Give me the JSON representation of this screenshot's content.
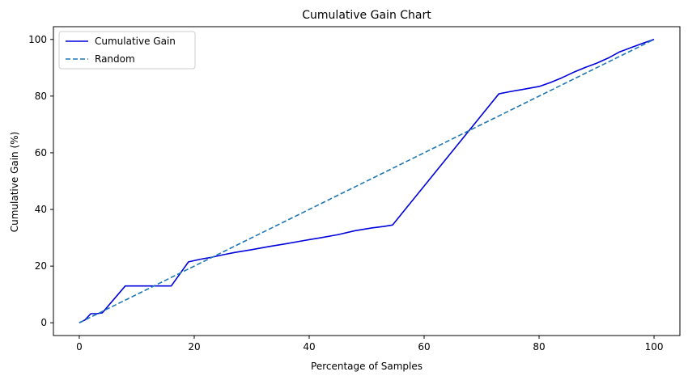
{
  "chart_data": {
    "type": "line",
    "title": "Cumulative Gain Chart",
    "xlabel": "Percentage of Samples",
    "ylabel": "Cumulative Gain (%)",
    "xlim": [
      -4.5,
      104.5
    ],
    "ylim": [
      -4.5,
      104.5
    ],
    "xticks": [
      0,
      20,
      40,
      60,
      80,
      100
    ],
    "yticks": [
      0,
      20,
      40,
      60,
      80,
      100
    ],
    "grid": false,
    "legend_position": "top-left",
    "series": [
      {
        "name": "Cumulative Gain",
        "color": "#0000dd",
        "style": "solid",
        "x": [
          0,
          1,
          2,
          3,
          4,
          8,
          10,
          12,
          14,
          16,
          19,
          21,
          23,
          25,
          27,
          30,
          33,
          36,
          39,
          42,
          45,
          48,
          51,
          53,
          54.5,
          73,
          75,
          77,
          80,
          82,
          84,
          86,
          88,
          90,
          92,
          94,
          96,
          98,
          100
        ],
        "values": [
          0,
          1,
          3.2,
          3.2,
          3.5,
          13,
          13,
          13,
          13,
          13,
          21.5,
          22.4,
          23.1,
          24,
          24.8,
          25.8,
          26.9,
          27.9,
          29,
          30,
          31.1,
          32.5,
          33.5,
          34,
          34.5,
          80.8,
          81.6,
          82.3,
          83.4,
          84.8,
          86.5,
          88.4,
          90.1,
          91.6,
          93.4,
          95.6,
          97.1,
          98.6,
          100
        ]
      },
      {
        "name": "Random",
        "color": "#1f77b4",
        "style": "dashed",
        "x": [
          0,
          100
        ],
        "values": [
          0,
          100
        ]
      }
    ]
  }
}
